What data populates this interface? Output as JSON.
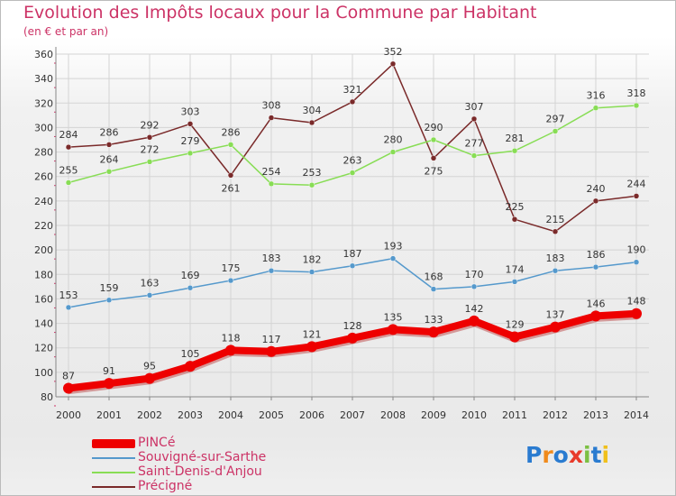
{
  "header": {
    "title": "Evolution des Impôts locaux pour la Commune par Habitant",
    "subtitle": "(en € et par an)"
  },
  "chart_data": {
    "type": "line",
    "title": "Evolution des Impôts locaux pour la Commune par Habitant",
    "subtitle": "(en € et par an)",
    "xlabel": "",
    "ylabel": "",
    "ylim": [
      80,
      360
    ],
    "yticks": [
      80,
      100,
      120,
      140,
      160,
      180,
      200,
      220,
      240,
      260,
      280,
      300,
      320,
      340,
      360
    ],
    "grid": true,
    "legend_position": "bottom-left",
    "x": [
      "2000",
      "2001",
      "2002",
      "2003",
      "2004",
      "2005",
      "2006",
      "2007",
      "2008",
      "2009",
      "2010",
      "2011",
      "2012",
      "2013",
      "2014"
    ],
    "series": [
      {
        "name": "Précigné",
        "key": "precigne",
        "color": "#7a2a2a",
        "values": [
          284,
          286,
          292,
          303,
          261,
          308,
          304,
          321,
          352,
          275,
          307,
          225,
          215,
          240,
          244
        ]
      },
      {
        "name": "Saint-Denis-d'Anjou",
        "key": "saint-denis",
        "color": "#88dd55",
        "values": [
          255,
          264,
          272,
          279,
          286,
          254,
          253,
          263,
          280,
          290,
          277,
          281,
          297,
          316,
          318
        ]
      },
      {
        "name": "Souvigné-sur-Sarthe",
        "key": "souvigne",
        "color": "#5599cc",
        "values": [
          153,
          159,
          163,
          169,
          175,
          183,
          182,
          187,
          193,
          168,
          170,
          174,
          183,
          186,
          190
        ]
      },
      {
        "name": "PINCé",
        "key": "pince",
        "color": "#ee0000",
        "values": [
          87,
          91,
          95,
          105,
          118,
          117,
          121,
          128,
          135,
          133,
          142,
          129,
          137,
          146,
          148
        ]
      }
    ],
    "legend": [
      "PINCé",
      "Souvigné-sur-Sarthe",
      "Saint-Denis-d'Anjou",
      "Précigné"
    ]
  },
  "branding": {
    "logo_text": "Proxiti",
    "logo_colors": [
      "#2a7bd0",
      "#f08a1c",
      "#2a7bd0",
      "#e83a2a",
      "#7cc043",
      "#2a7bd0",
      "#f0c01c"
    ]
  }
}
